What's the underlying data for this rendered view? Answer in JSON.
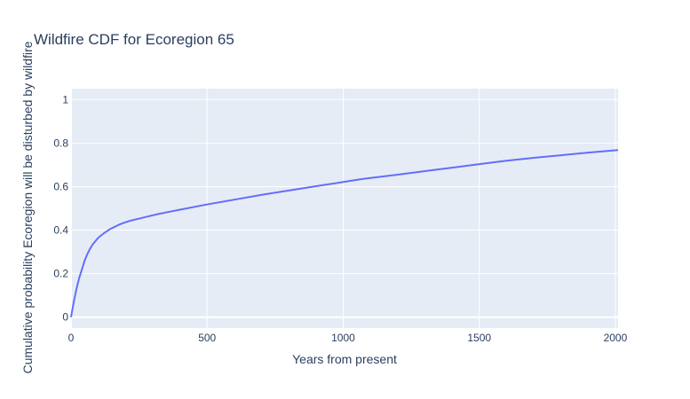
{
  "chart_data": {
    "type": "line",
    "title": "Wildfire CDF for Ecoregion 65",
    "xlabel": "Years from present",
    "ylabel": "Cumulative probability Ecoregion will be disturbed by wildfire",
    "xlim": [
      0,
      2010
    ],
    "ylim": [
      -0.05,
      1.05
    ],
    "xticks": [
      0,
      500,
      1000,
      1500,
      2000
    ],
    "xtick_labels": [
      "0",
      "500",
      "1000",
      "1500",
      "2000"
    ],
    "yticks": [
      0,
      0.2,
      0.4,
      0.6,
      0.8,
      1
    ],
    "ytick_labels": [
      "0",
      "0.2",
      "0.4",
      "0.6",
      "0.8",
      "1"
    ],
    "grid": true,
    "legend": "none",
    "colors": {
      "line": "#636efa",
      "plot_bg": "#e5ecf6",
      "grid": "#ffffff",
      "text": "#2a3f5f"
    },
    "series": [
      {
        "x": [
          0,
          10,
          20,
          30,
          40,
          50,
          60,
          70,
          80,
          90,
          100,
          120,
          140,
          160,
          180,
          200,
          220,
          250,
          280,
          320,
          360,
          400,
          500,
          600,
          700,
          800,
          900,
          1000,
          1070,
          1200,
          1300,
          1400,
          1500,
          1600,
          1700,
          1800,
          1900,
          2010
        ],
        "y": [
          0.0,
          0.07,
          0.13,
          0.18,
          0.22,
          0.26,
          0.29,
          0.315,
          0.335,
          0.35,
          0.365,
          0.385,
          0.402,
          0.415,
          0.427,
          0.436,
          0.444,
          0.453,
          0.462,
          0.474,
          0.484,
          0.494,
          0.518,
          0.54,
          0.562,
          0.582,
          0.602,
          0.621,
          0.635,
          0.655,
          0.671,
          0.687,
          0.703,
          0.719,
          0.732,
          0.744,
          0.756,
          0.768
        ]
      }
    ]
  }
}
